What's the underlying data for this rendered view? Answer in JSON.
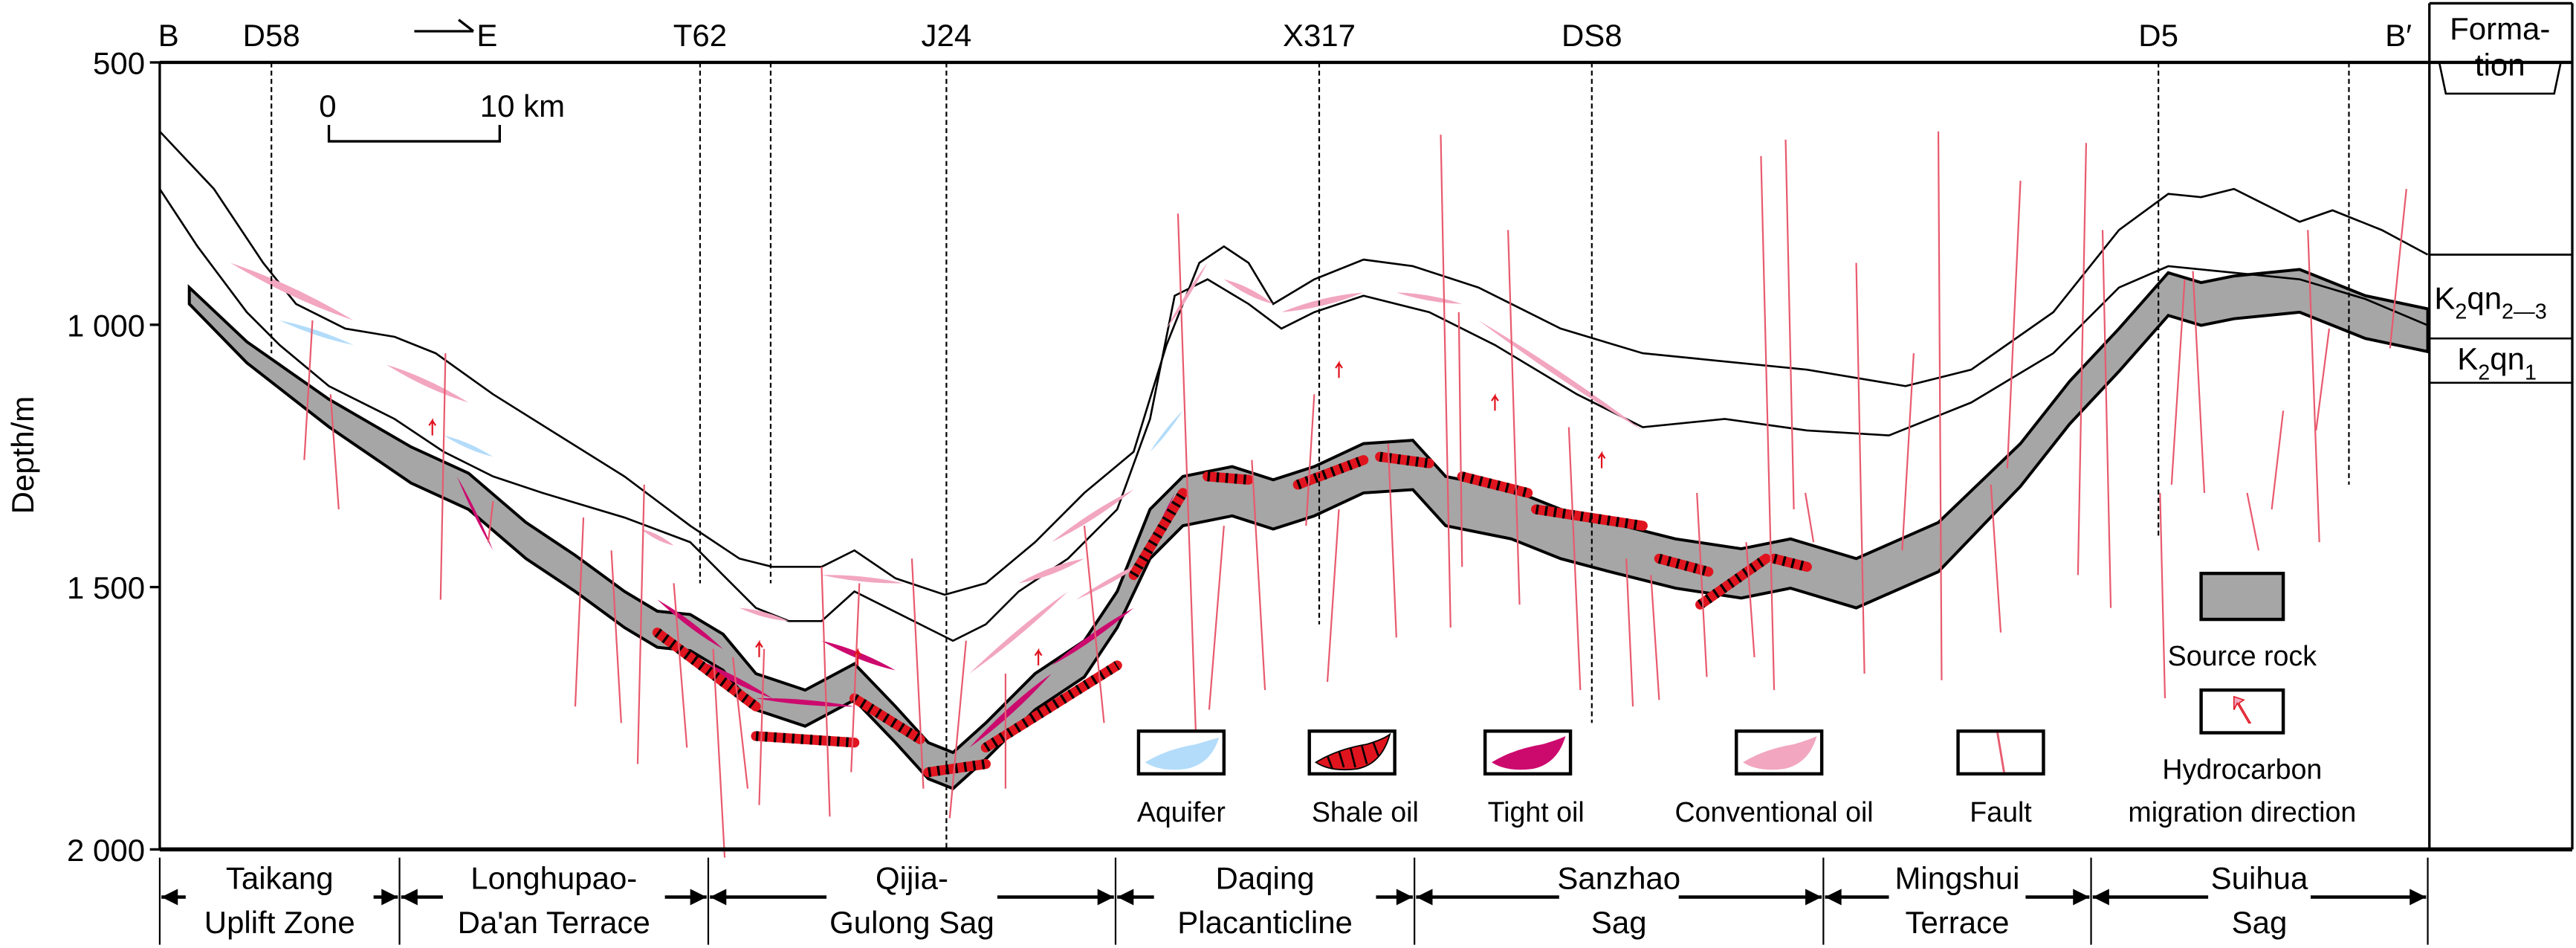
{
  "top_labels": {
    "start": "B",
    "end": "B′",
    "direction": "E"
  },
  "wells": [
    "D58",
    "T62",
    "J24",
    "X317",
    "DS8",
    "D5"
  ],
  "scale_bar": {
    "zero": "0",
    "end": "10 km"
  },
  "y_axis": {
    "label": "Depth/m",
    "ticks": [
      "500",
      "1 000",
      "1 500",
      "2 000"
    ],
    "range": [
      500,
      2000
    ]
  },
  "formation": {
    "header_line1": "Forma-",
    "header_line2": "tion",
    "units": [
      {
        "main": "K",
        "sub1": "2",
        "mid": "qn",
        "sub2": "2—3"
      },
      {
        "main": "K",
        "sub1": "2",
        "mid": "qn",
        "sub2": "1"
      }
    ]
  },
  "legend": {
    "aquifer": "Aquifer",
    "shale_oil": "Shale oil",
    "tight_oil": "Tight oil",
    "conventional_oil": "Conventional oil",
    "fault": "Fault",
    "source_rock": "Source rock",
    "migration_line1": "Hydrocarbon",
    "migration_line2": "migration direction"
  },
  "zones": [
    {
      "l1": "Taikang",
      "l2": "Uplift Zone"
    },
    {
      "l1": "Longhupao-",
      "l2": "Da'an Terrace"
    },
    {
      "l1": "Qijia-",
      "l2": "Gulong Sag"
    },
    {
      "l1": "Daqing",
      "l2": "Placanticline"
    },
    {
      "l1": "Sanzhao",
      "l2": "Sag"
    },
    {
      "l1": "Mingshui",
      "l2": "Terrace"
    },
    {
      "l1": "Suihua",
      "l2": "Sag"
    }
  ],
  "colors": {
    "source_rock": "#a6a6a6",
    "aquifer": "#b3dcfa",
    "shale_oil": "#e0141e",
    "tight_oil": "#cc0a6e",
    "conventional_oil": "#f2a6bf",
    "fault": "#e85a6e"
  }
}
